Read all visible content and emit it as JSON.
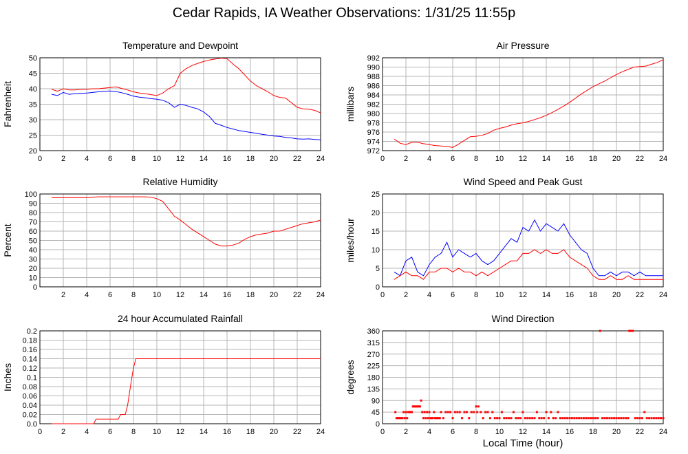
{
  "title": "Cedar Rapids, IA Weather Observations: 1/31/25 11:55p",
  "x_axis_label": "Local Time (hour)",
  "chart_data": [
    {
      "type": "line",
      "title": "Temperature and Dewpoint",
      "ylabel": "Fahrenheit",
      "xlim": [
        0,
        24
      ],
      "ylim": [
        20,
        50
      ],
      "x_ticks": [
        0,
        2,
        4,
        6,
        8,
        10,
        12,
        14,
        16,
        18,
        20,
        22,
        24
      ],
      "y_ticks": [
        20,
        25,
        30,
        35,
        40,
        45,
        50
      ],
      "grid": true,
      "series": [
        {
          "color": "#ff0000",
          "x": [
            1,
            1.5,
            2,
            2.5,
            3,
            3.5,
            4,
            4.5,
            5,
            5.5,
            6,
            6.5,
            7,
            7.5,
            8,
            8.5,
            9,
            9.5,
            10,
            10.5,
            11,
            11.5,
            12,
            12.5,
            13,
            13.5,
            14,
            14.5,
            15,
            15.5,
            16,
            16.5,
            17,
            17.5,
            18,
            18.5,
            19,
            19.5,
            20,
            20.5,
            21,
            21.5,
            22,
            22.5,
            23,
            23.5,
            24
          ],
          "values": [
            39.8,
            39.2,
            40,
            39.6,
            39.6,
            39.8,
            39.8,
            40,
            40,
            40.2,
            40.4,
            40.6,
            40.1,
            39.6,
            39,
            38.6,
            38.4,
            38.1,
            37.8,
            38.6,
            40,
            41,
            45,
            46.5,
            47.5,
            48.2,
            48.8,
            49.3,
            49.6,
            49.9,
            49.7,
            48,
            46.5,
            44.5,
            42.5,
            41,
            40,
            39,
            37.8,
            37.2,
            37,
            35.5,
            34,
            33.5,
            33.4,
            33,
            32.2
          ]
        },
        {
          "color": "#0000ff",
          "x": [
            1,
            1.5,
            2,
            2.5,
            3,
            3.5,
            4,
            4.5,
            5,
            5.5,
            6,
            6.5,
            7,
            7.5,
            8,
            8.5,
            9,
            9.5,
            10,
            10.5,
            11,
            11.5,
            12,
            12.5,
            13,
            13.5,
            14,
            14.5,
            15,
            15.5,
            16,
            16.5,
            17,
            17.5,
            18,
            18.5,
            19,
            19.5,
            20,
            20.5,
            21,
            21.5,
            22,
            22.5,
            23,
            23.5,
            24
          ],
          "values": [
            38.2,
            37.8,
            38.8,
            38.2,
            38.4,
            38.5,
            38.6,
            38.8,
            39,
            39.2,
            39.3,
            39.1,
            38.7,
            38.2,
            37.6,
            37.3,
            37.1,
            36.8,
            36.6,
            36.3,
            35.5,
            34,
            35,
            34.6,
            34,
            33.5,
            32.5,
            31,
            28.8,
            28.2,
            27.5,
            27,
            26.5,
            26.2,
            25.9,
            25.6,
            25.3,
            25,
            24.7,
            24.6,
            24.3,
            24.1,
            23.8,
            23.7,
            23.8,
            23.6,
            23.5
          ]
        }
      ]
    },
    {
      "type": "line",
      "title": "Air Pressure",
      "ylabel": "millibars",
      "xlim": [
        0,
        24
      ],
      "ylim": [
        972,
        992
      ],
      "x_ticks": [
        0,
        2,
        4,
        6,
        8,
        10,
        12,
        14,
        16,
        18,
        20,
        22,
        24
      ],
      "y_ticks": [
        972,
        974,
        976,
        978,
        980,
        982,
        984,
        986,
        988,
        990,
        992
      ],
      "grid": true,
      "series": [
        {
          "color": "#ff0000",
          "x": [
            1,
            1.5,
            2,
            2.5,
            3,
            3.5,
            4,
            4.5,
            5,
            5.5,
            6,
            6.5,
            7,
            7.5,
            8,
            8.5,
            9,
            9.5,
            10,
            10.5,
            11,
            11.5,
            12,
            12.5,
            13,
            13.5,
            14,
            14.5,
            15,
            15.5,
            16,
            16.5,
            17,
            17.5,
            18,
            18.5,
            19,
            19.5,
            20,
            20.5,
            21,
            21.5,
            22,
            22.5,
            23,
            23.5,
            24
          ],
          "values": [
            974.5,
            973.6,
            973.3,
            973.8,
            973.8,
            973.5,
            973.3,
            973.1,
            973,
            972.9,
            972.7,
            973.4,
            974.2,
            975,
            975.1,
            975.3,
            975.7,
            976.4,
            976.8,
            977.1,
            977.5,
            977.8,
            978,
            978.3,
            978.7,
            979.1,
            979.6,
            980.2,
            980.9,
            981.6,
            982.4,
            983.3,
            984.2,
            985,
            985.8,
            986.4,
            987,
            987.7,
            988.4,
            989,
            989.5,
            990,
            990.1,
            990.2,
            990.6,
            991,
            991.6
          ]
        }
      ]
    },
    {
      "type": "line",
      "title": "Relative Humidity",
      "ylabel": "Percent",
      "xlim": [
        0,
        24
      ],
      "ylim": [
        0,
        100
      ],
      "x_ticks": [
        2,
        4,
        6,
        8,
        10,
        12,
        14,
        16,
        18,
        20,
        22,
        24
      ],
      "y_ticks": [
        0,
        10,
        20,
        30,
        40,
        50,
        60,
        70,
        80,
        90,
        100
      ],
      "grid": true,
      "series": [
        {
          "color": "#ff0000",
          "x": [
            1,
            1.5,
            2,
            2.5,
            3,
            3.5,
            4,
            4.5,
            5,
            5.5,
            6,
            6.5,
            7,
            7.5,
            8,
            8.5,
            9,
            9.5,
            10,
            10.5,
            11,
            11.5,
            12,
            12.5,
            13,
            13.5,
            14,
            14.5,
            15,
            15.5,
            16,
            16.5,
            17,
            17.5,
            18,
            18.5,
            19,
            19.5,
            20,
            20.5,
            21,
            21.5,
            22,
            22.5,
            23,
            23.5,
            24
          ],
          "values": [
            96,
            96,
            96,
            96,
            96,
            96,
            96,
            96.5,
            97,
            97,
            97,
            97,
            97,
            97,
            97,
            97,
            97,
            96.5,
            95,
            92,
            84,
            76,
            72,
            67,
            62,
            58,
            54,
            50,
            46,
            44,
            44,
            45,
            47,
            51,
            54,
            56,
            57,
            58,
            60,
            60,
            62,
            64,
            66,
            68,
            69,
            70,
            72
          ]
        }
      ]
    },
    {
      "type": "line",
      "title": "Wind Speed and Peak Gust",
      "ylabel": "miles/hour",
      "xlim": [
        0,
        24
      ],
      "ylim": [
        0,
        25
      ],
      "x_ticks": [
        0,
        2,
        4,
        6,
        8,
        10,
        12,
        14,
        16,
        18,
        20,
        22,
        24
      ],
      "y_ticks": [
        0,
        5,
        10,
        15,
        20,
        25
      ],
      "grid": true,
      "series": [
        {
          "color": "#0000ff",
          "x": [
            1,
            1.5,
            2,
            2.5,
            3,
            3.5,
            4,
            4.5,
            5,
            5.5,
            6,
            6.5,
            7,
            7.5,
            8,
            8.5,
            9,
            9.5,
            10,
            10.5,
            11,
            11.5,
            12,
            12.5,
            13,
            13.5,
            14,
            14.5,
            15,
            15.5,
            16,
            16.5,
            17,
            17.5,
            18,
            18.5,
            19,
            19.5,
            20,
            20.5,
            21,
            21.5,
            22,
            22.5,
            23,
            23.5,
            24
          ],
          "values": [
            4,
            3,
            7,
            8,
            4,
            3,
            6,
            8,
            9,
            12,
            8,
            10,
            9,
            8,
            9,
            7,
            6,
            7,
            9,
            11,
            13,
            12,
            16,
            15,
            18,
            15,
            17,
            16,
            15,
            17,
            14,
            12,
            10,
            9,
            5,
            3,
            3,
            4,
            3,
            4,
            4,
            3,
            4,
            3,
            3,
            3,
            3
          ]
        },
        {
          "color": "#ff0000",
          "x": [
            1,
            1.5,
            2,
            2.5,
            3,
            3.5,
            4,
            4.5,
            5,
            5.5,
            6,
            6.5,
            7,
            7.5,
            8,
            8.5,
            9,
            9.5,
            10,
            10.5,
            11,
            11.5,
            12,
            12.5,
            13,
            13.5,
            14,
            14.5,
            15,
            15.5,
            16,
            16.5,
            17,
            17.5,
            18,
            18.5,
            19,
            19.5,
            20,
            20.5,
            21,
            21.5,
            22,
            22.5,
            23,
            23.5,
            24
          ],
          "values": [
            2,
            3,
            4,
            3,
            3,
            2,
            4,
            4,
            5,
            5,
            4,
            5,
            4,
            4,
            3,
            4,
            3,
            4,
            5,
            6,
            7,
            7,
            9,
            9,
            10,
            9,
            10,
            9,
            9,
            10,
            8,
            7,
            6,
            5,
            3,
            2,
            2,
            3,
            2,
            2,
            3,
            2,
            2,
            2,
            2,
            2,
            2
          ]
        }
      ]
    },
    {
      "type": "line",
      "title": "24 hour Accumulated Rainfall",
      "ylabel": "Inches",
      "xlim": [
        0,
        24
      ],
      "ylim": [
        0,
        0.2
      ],
      "x_ticks": [
        0,
        2,
        4,
        6,
        8,
        10,
        12,
        14,
        16,
        18,
        20,
        22,
        24
      ],
      "y_ticks": [
        0.0,
        0.02,
        0.04,
        0.06,
        0.08,
        0.1,
        0.12,
        0.14,
        0.16,
        0.18,
        0.2
      ],
      "y_tick_labels": [
        "0.0",
        "0.02",
        "0.04",
        "0.06",
        "0.08",
        "0.1",
        "0.12",
        "0.14",
        "0.16",
        "0.18",
        "0.2"
      ],
      "grid": true,
      "series": [
        {
          "color": "#ff0000",
          "x": [
            1,
            4.6,
            4.8,
            6.7,
            6.9,
            7.3,
            7.5,
            7.8,
            8.0,
            8.2,
            8.5,
            24
          ],
          "values": [
            0,
            0,
            0.01,
            0.01,
            0.02,
            0.02,
            0.04,
            0.09,
            0.12,
            0.14,
            0.14,
            0.14
          ]
        }
      ]
    },
    {
      "type": "scatter",
      "title": "Wind Direction",
      "ylabel": "degrees",
      "xlim": [
        0,
        24
      ],
      "ylim": [
        0,
        360
      ],
      "x_ticks": [
        0,
        2,
        4,
        6,
        8,
        10,
        12,
        14,
        16,
        18,
        20,
        22,
        24
      ],
      "y_ticks": [
        0,
        45,
        90,
        135,
        180,
        225,
        270,
        315,
        360
      ],
      "grid": true,
      "series": [
        {
          "color": "#ff0000",
          "x": [
            1.1,
            1.2,
            1.3,
            1.4,
            1.5,
            1.6,
            1.7,
            1.8,
            1.9,
            2.0,
            2.1,
            2.2,
            2.3,
            2.4,
            2.5,
            2.6,
            2.7,
            2.8,
            2.9,
            3.0,
            3.1,
            3.2,
            3.3,
            3.4,
            3.5,
            3.6,
            3.7,
            3.8,
            3.9,
            4.0,
            4.1,
            4.2,
            4.3,
            4.4,
            4.5,
            4.6,
            4.7,
            4.8,
            4.9,
            5.0,
            5.2,
            5.4,
            5.6,
            5.8,
            6.0,
            6.2,
            6.4,
            6.6,
            6.8,
            7.0,
            7.2,
            7.4,
            7.6,
            7.8,
            8.0,
            8.1,
            8.2,
            8.4,
            8.6,
            8.8,
            9.0,
            9.2,
            9.4,
            9.6,
            9.8,
            10.0,
            10.2,
            10.4,
            10.6,
            10.8,
            11.0,
            11.2,
            11.4,
            11.6,
            11.8,
            12.0,
            12.2,
            12.4,
            12.6,
            12.8,
            13.0,
            13.2,
            13.4,
            13.6,
            13.8,
            14.0,
            14.2,
            14.4,
            14.6,
            14.8,
            15.0,
            15.2,
            15.4,
            15.6,
            15.8,
            16.0,
            16.2,
            16.4,
            16.6,
            16.8,
            17.0,
            17.2,
            17.4,
            17.6,
            17.8,
            18.0,
            18.2,
            18.4,
            18.6,
            18.8,
            19.0,
            19.2,
            19.4,
            19.6,
            19.8,
            20.0,
            20.2,
            20.4,
            20.6,
            20.8,
            21.0,
            21.1,
            21.2,
            21.3,
            21.4,
            21.6,
            21.8,
            22.0,
            22.2,
            22.4,
            22.6,
            22.8,
            23.0,
            23.2,
            23.4,
            23.6,
            23.8,
            24.0
          ],
          "values": [
            45,
            22,
            22,
            22,
            22,
            22,
            22,
            45,
            22,
            45,
            22,
            45,
            45,
            45,
            45,
            67,
            67,
            67,
            67,
            67,
            67,
            67,
            90,
            45,
            22,
            45,
            22,
            45,
            22,
            45,
            22,
            22,
            22,
            45,
            22,
            22,
            22,
            22,
            22,
            45,
            22,
            45,
            45,
            45,
            22,
            45,
            45,
            45,
            22,
            45,
            45,
            22,
            45,
            45,
            67,
            45,
            67,
            45,
            22,
            45,
            45,
            22,
            45,
            22,
            22,
            22,
            45,
            22,
            22,
            22,
            22,
            45,
            22,
            22,
            22,
            45,
            22,
            22,
            22,
            22,
            22,
            45,
            22,
            22,
            22,
            45,
            22,
            45,
            22,
            22,
            45,
            22,
            22,
            22,
            22,
            22,
            22,
            22,
            22,
            22,
            22,
            22,
            22,
            22,
            22,
            22,
            22,
            22,
            360,
            22,
            22,
            22,
            22,
            22,
            22,
            22,
            22,
            22,
            22,
            22,
            22,
            360,
            360,
            360,
            360,
            22,
            22,
            22,
            22,
            45,
            22,
            22,
            22,
            22,
            22,
            22,
            22,
            22
          ]
        }
      ]
    }
  ]
}
